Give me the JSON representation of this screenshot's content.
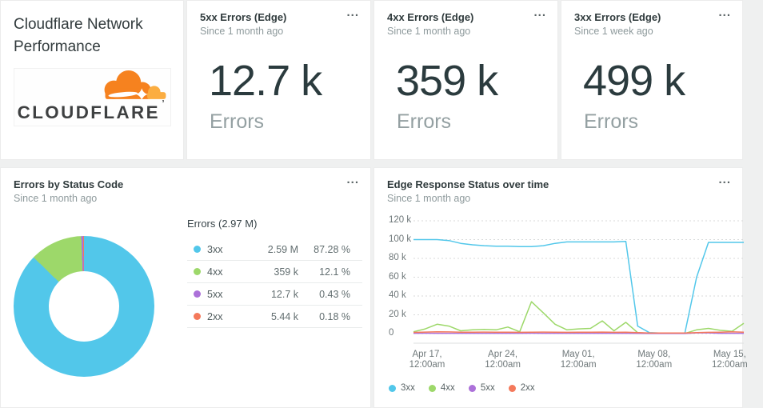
{
  "colors": {
    "c3xx": "#52C7EA",
    "c4xx": "#9DD86A",
    "c5xx": "#AC71D9",
    "c2xx": "#F4795B"
  },
  "header_card": {
    "title": "Cloudflare Network Performance",
    "logo_wordmark": "CLOUDFLARE",
    "logo_mark": "’",
    "logo_cloud_color": "#F6821F",
    "logo_cloud_light": "#FBAD41"
  },
  "billboards": [
    {
      "title": "5xx Errors (Edge)",
      "subtitle": "Since 1 month ago",
      "menu": "...",
      "value": "12.7 k",
      "label": "Errors"
    },
    {
      "title": "4xx Errors (Edge)",
      "subtitle": "Since 1 month ago",
      "menu": "...",
      "value": "359 k",
      "label": "Errors"
    },
    {
      "title": "3xx Errors (Edge)",
      "subtitle": "Since 1 week ago",
      "menu": "...",
      "value": "499 k",
      "label": "Errors"
    }
  ],
  "pie_card": {
    "title": "Errors by Status Code",
    "subtitle": "Since 1 month ago",
    "menu": "...",
    "chart_data": {
      "type": "pie",
      "title": "Errors by Status Code",
      "total_label": "Errors (2.97 M)",
      "slices": [
        {
          "label": "3xx",
          "value": "2.59 M",
          "pct": 87.28,
          "pct_label": "87.28 %",
          "color": "#52C7EA"
        },
        {
          "label": "4xx",
          "value": "359 k",
          "pct": 12.1,
          "pct_label": "12.1 %",
          "color": "#9DD86A"
        },
        {
          "label": "5xx",
          "value": "12.7 k",
          "pct": 0.43,
          "pct_label": "0.43 %",
          "color": "#AC71D9"
        },
        {
          "label": "2xx",
          "value": "5.44 k",
          "pct": 0.18,
          "pct_label": "0.18 %",
          "color": "#F4795B"
        }
      ]
    }
  },
  "line_card": {
    "title": "Edge Response Status over time",
    "subtitle": "Since 1 month ago",
    "menu": "...",
    "chart_data": {
      "type": "line",
      "title": "Edge Response Status over time",
      "grid": "horizontal dashed",
      "legend_position": "bottom-left",
      "ylim": [
        0,
        120000
      ],
      "values_unit": "thousands",
      "y_ticks": [
        "120 k",
        "100 k",
        "80 k",
        "60 k",
        "40 k",
        "20 k",
        "0"
      ],
      "y_tick_values": [
        120,
        100,
        80,
        60,
        40,
        20,
        0
      ],
      "x_ticks": [
        {
          "line1": "Apr 17,",
          "line2": "12:00am"
        },
        {
          "line1": "Apr 24,",
          "line2": "12:00am"
        },
        {
          "line1": "May 01,",
          "line2": "12:00am"
        },
        {
          "line1": "May 08,",
          "line2": "12:00am"
        },
        {
          "line1": "May 15,",
          "line2": "12:00am"
        }
      ],
      "series": [
        {
          "name": "3xx",
          "color": "#52C7EA",
          "values": [
            100,
            100,
            100,
            99,
            96,
            94.5,
            93.5,
            93,
            93,
            92.5,
            92.5,
            93.5,
            96,
            97.5,
            97.5,
            97.5,
            97.5,
            97.5,
            98,
            8,
            1,
            0.5,
            0.5,
            0.5,
            60,
            97,
            97,
            97,
            97
          ]
        },
        {
          "name": "4xx",
          "color": "#9DD86A",
          "values": [
            2,
            5,
            10,
            8,
            3,
            4,
            4.5,
            4,
            7,
            2,
            34,
            22,
            10,
            4,
            5,
            5.5,
            13.5,
            3,
            12,
            1,
            0.3,
            0.2,
            0.2,
            0.2,
            4,
            5.5,
            3.5,
            2.5,
            11
          ]
        },
        {
          "name": "5xx",
          "color": "#AC71D9",
          "values": [
            0.3,
            0.4,
            0.3,
            0.3,
            0.3,
            0.3,
            0.3,
            0.3,
            0.3,
            0.3,
            0.4,
            0.3,
            0.3,
            0.3,
            0.3,
            0.3,
            0.3,
            0.3,
            0.3,
            0.2,
            0.1,
            0.1,
            0.1,
            0.1,
            0.8,
            0.8,
            0.3,
            0.3,
            0.3
          ]
        },
        {
          "name": "2xx",
          "color": "#F4795B",
          "values": [
            1.3,
            1.6,
            2,
            1.8,
            1.5,
            1.5,
            1.6,
            1.5,
            1.5,
            1.4,
            1.5,
            1.6,
            1.5,
            1.4,
            1.5,
            1.5,
            1.6,
            1.4,
            1.5,
            1,
            0.7,
            0.6,
            0.6,
            0.7,
            1,
            1.4,
            1.5,
            1.9,
            1.5
          ]
        }
      ]
    }
  }
}
